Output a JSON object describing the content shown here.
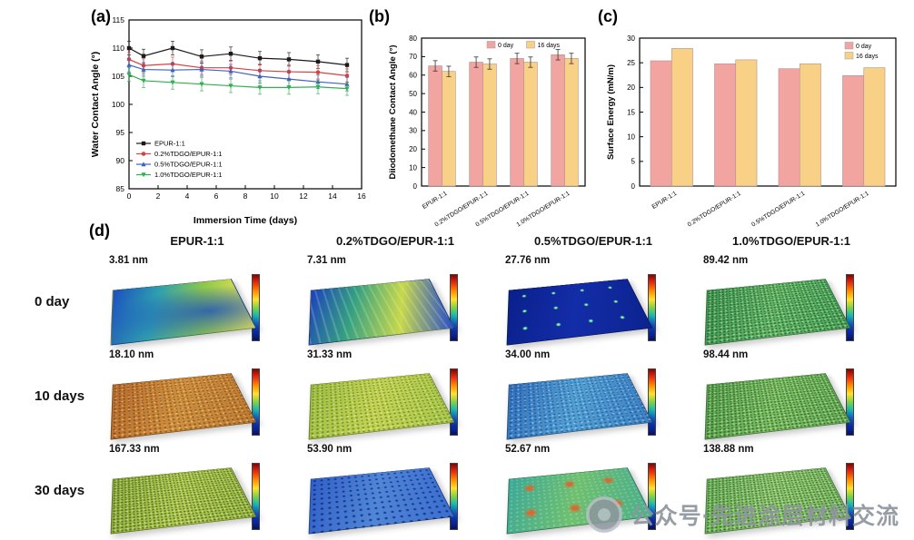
{
  "panels": {
    "a": "(a)",
    "b": "(b)",
    "c": "(c)",
    "d": "(d)"
  },
  "chart_data": [
    {
      "id": "water-contact-angle",
      "type": "line",
      "xlabel": "Immersion Time (days)",
      "ylabel": "Water Contact Angle (°)",
      "xlim": [
        0,
        16
      ],
      "ylim": [
        85,
        115
      ],
      "xticks": [
        0,
        2,
        4,
        6,
        8,
        10,
        12,
        14,
        16
      ],
      "yticks": [
        85,
        90,
        95,
        100,
        105,
        110,
        115
      ],
      "x": [
        0,
        1,
        3,
        5,
        7,
        9,
        11,
        13,
        15
      ],
      "error": 1.2,
      "legend_position": "bottom-left",
      "series": [
        {
          "name": "EPUR-1:1",
          "color": "#1a1a1a",
          "marker": "square",
          "values": [
            110,
            108.6,
            110,
            108.5,
            109,
            108.2,
            108,
            107.6,
            107
          ]
        },
        {
          "name": "0.2%TDGO/EPUR-1:1",
          "color": "#d94040",
          "marker": "circle",
          "values": [
            108,
            106.9,
            107.2,
            106.5,
            106.5,
            106,
            105.8,
            105.7,
            105.1
          ]
        },
        {
          "name": "0.5%TDGO/EPUR-1:1",
          "color": "#4060c0",
          "marker": "triangle",
          "values": [
            107,
            106.2,
            106.1,
            106.2,
            105.9,
            105,
            104.5,
            104,
            103.6
          ]
        },
        {
          "name": "1.0%TDGO/EPUR-1:1",
          "color": "#30b050",
          "marker": "triangle-down",
          "values": [
            105.3,
            104.2,
            103.9,
            103.6,
            103.3,
            103,
            103,
            103.1,
            102.8
          ]
        }
      ]
    },
    {
      "id": "diiodomethane-contact-angle",
      "type": "bar",
      "ylabel": "Diiodomethane Contact Angle (°)",
      "ylim": [
        0,
        80
      ],
      "yticks": [
        0,
        10,
        20,
        30,
        40,
        50,
        60,
        70,
        80
      ],
      "categories": [
        "EPUR-1:1",
        "0.2%TDGO/EPUR-1:1",
        "0.5%TDGO/EPUR-1:1",
        "1.0%TDGO/EPUR-1:1"
      ],
      "error": 2.8,
      "legend_position": "top",
      "series": [
        {
          "name": "0 day",
          "color": "#f2a5a0",
          "values": [
            65,
            67,
            69,
            71
          ]
        },
        {
          "name": "16 days",
          "color": "#f8d187",
          "values": [
            62,
            66,
            67,
            69
          ]
        }
      ]
    },
    {
      "id": "surface-energy",
      "type": "bar",
      "ylabel": "Surface Energy (mN/m)",
      "ylim": [
        0,
        30
      ],
      "yticks": [
        0,
        5,
        10,
        15,
        20,
        25,
        30
      ],
      "categories": [
        "EPUR-1:1",
        "0.2%TDGO/EPUR-1:1",
        "0.5%TDGO/EPUR-1:1",
        "1.0%TDGO/EPUR-1:1"
      ],
      "error": 0,
      "legend_position": "top-right",
      "series": [
        {
          "name": "0 day",
          "color": "#f2a5a0",
          "values": [
            25.4,
            24.8,
            23.8,
            22.4
          ]
        },
        {
          "name": "16 days",
          "color": "#f8d187",
          "values": [
            27.9,
            25.6,
            24.8,
            24.0
          ]
        }
      ]
    }
  ],
  "afm": {
    "columns": [
      "EPUR-1:1",
      "0.2%TDGO/EPUR-1:1",
      "0.5%TDGO/EPUR-1:1",
      "1.0%TDGO/EPUR-1:1"
    ],
    "rows": [
      "0 day",
      "10 days",
      "30 days"
    ],
    "cells": [
      [
        {
          "value": "3.81 nm",
          "texture": "smooth",
          "colors": [
            "#1b4fc0",
            "#2f9fae",
            "#8fc84a",
            "#e8e25a"
          ]
        },
        {
          "value": "7.31 nm",
          "texture": "ridged",
          "colors": [
            "#1b3fc0",
            "#35a080",
            "#c8d84a",
            "#2a50c8"
          ]
        },
        {
          "value": "27.76 nm",
          "texture": "sparse-spikes",
          "colors": [
            "#0a1f8a",
            "#132da8",
            "#0c2390"
          ]
        },
        {
          "value": "89.42 nm",
          "texture": "spiky",
          "colors": [
            "#3f9a55",
            "#63bb6a",
            "#4aa85c"
          ]
        }
      ],
      [
        {
          "value": "18.10 nm",
          "texture": "speckled",
          "colors": [
            "#b86a28",
            "#d18f3a",
            "#c07b2e"
          ]
        },
        {
          "value": "31.33 nm",
          "texture": "speckled",
          "colors": [
            "#9cbf3f",
            "#c2d44f",
            "#a8c845"
          ]
        },
        {
          "value": "34.00 nm",
          "texture": "speckled",
          "colors": [
            "#2f6fc0",
            "#4fa0d8",
            "#3a82c8"
          ]
        },
        {
          "value": "98.44 nm",
          "texture": "spiky",
          "colors": [
            "#58a54f",
            "#7cc263",
            "#68b258"
          ]
        }
      ],
      [
        {
          "value": "167.33 nm",
          "texture": "spiky",
          "colors": [
            "#8fae3a",
            "#b5cc4d",
            "#9cba40"
          ]
        },
        {
          "value": "53.90 nm",
          "texture": "dotted",
          "colors": [
            "#2f5fc8",
            "#4f86d8",
            "#3a6ed0"
          ]
        },
        {
          "value": "52.67 nm",
          "texture": "peaks",
          "colors": [
            "#3aa898",
            "#6fc070",
            "#4cb08a"
          ],
          "accent": "#d86a30"
        },
        {
          "value": "138.88 nm",
          "texture": "spiky",
          "colors": [
            "#6bb35a",
            "#8fca6f",
            "#7abc62"
          ]
        }
      ]
    ]
  },
  "watermark": {
    "text": "公众号·先进涂层材料交流",
    "icon": "camera-shutter-logo"
  }
}
